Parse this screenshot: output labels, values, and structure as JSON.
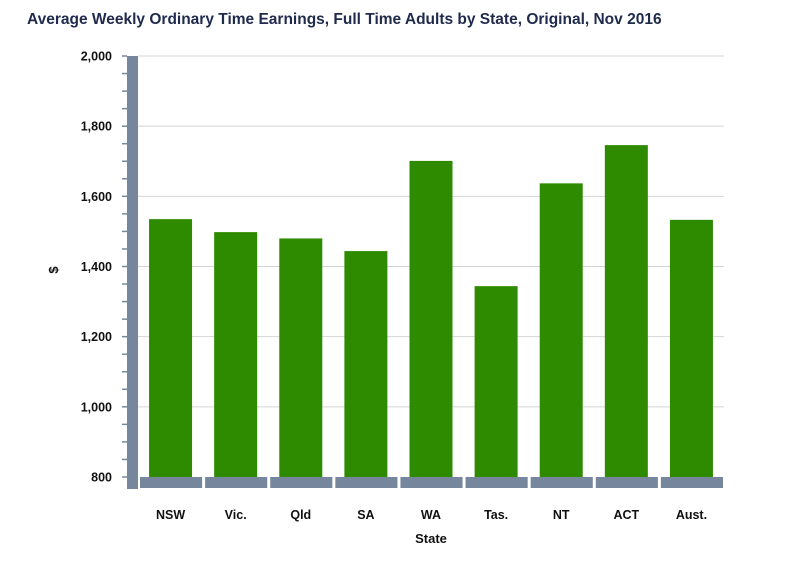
{
  "title": "Average Weekly Ordinary Time Earnings, Full Time Adults by State, Original, Nov 2016",
  "chart_data": {
    "type": "bar",
    "title": "Average Weekly Ordinary Time Earnings, Full Time Adults by State, Original, Nov 2016",
    "xlabel": "State",
    "ylabel": "$",
    "categories": [
      "NSW",
      "Vic.",
      "Qld",
      "SA",
      "WA",
      "Tas.",
      "NT",
      "ACT",
      "Aust."
    ],
    "values": [
      1535,
      1498,
      1480,
      1444,
      1701,
      1344,
      1637,
      1746,
      1533
    ],
    "ylim": [
      800,
      2000
    ],
    "yticks": [
      800,
      1000,
      1200,
      1400,
      1600,
      1800,
      2000
    ],
    "ytick_labels": [
      "800",
      "1,000",
      "1,200",
      "1,400",
      "1,600",
      "1,800",
      "2,000"
    ],
    "grid": true,
    "colors": {
      "bar": "#2e8b00",
      "axis": "#76869c",
      "grid": "#d4d4d4"
    }
  }
}
